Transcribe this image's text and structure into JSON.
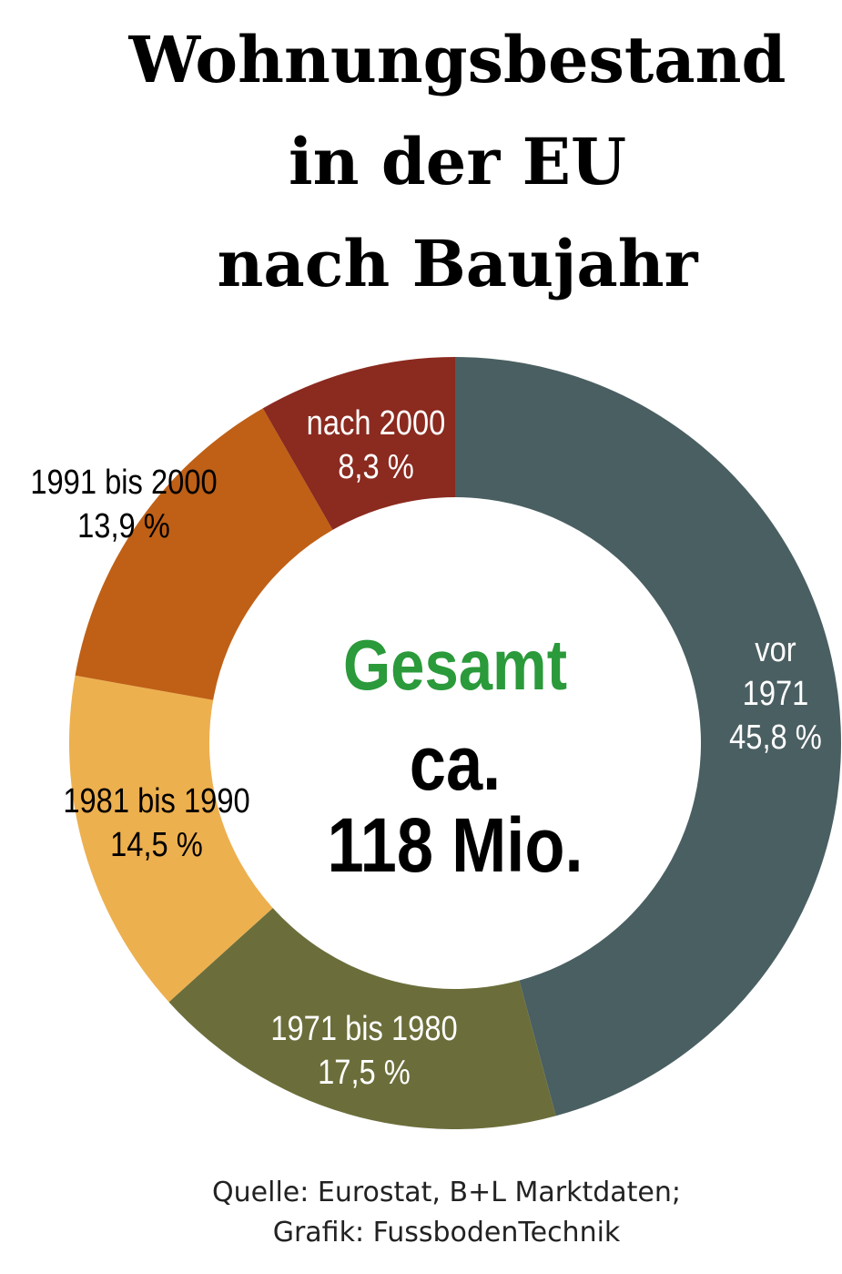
{
  "chart_data": {
    "type": "donut",
    "title": [
      "Wohnungsbestand",
      "in der EU",
      "nach Baujahr"
    ],
    "categories": [
      "vor 1971",
      "1971 bis 1980",
      "1981 bis 1990",
      "1991 bis 2000",
      "nach 2000"
    ],
    "values": [
      45.8,
      17.5,
      14.5,
      13.9,
      8.3
    ],
    "value_labels": [
      "45,8 %",
      "17,5 %",
      "14,5 %",
      "13,9 %",
      "8,3 %"
    ],
    "colors": [
      "#4a5f62",
      "#6b6e3a",
      "#edb04f",
      "#bf6016",
      "#8b2a1f"
    ],
    "center_text": [
      "Gesamt",
      "ca.",
      "118 Mio."
    ],
    "center_title_color": "#2a9a3a",
    "source": [
      "Quelle: Eurostat, B+L Marktdaten;",
      "Grafik: FussbodenTechnik"
    ]
  }
}
